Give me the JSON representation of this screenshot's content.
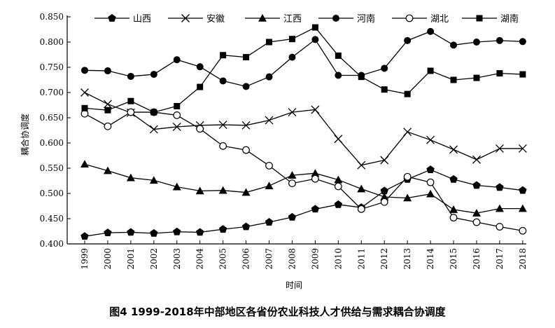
{
  "chart_data": {
    "type": "line",
    "caption": "图4 1999-2018年中部地区各省份农业科技人才供给与需求耦合协调度",
    "xlabel": "时间",
    "ylabel": "耦合协调度",
    "ylim": [
      0.4,
      0.85
    ],
    "yticks": [
      "0.400",
      "0.450",
      "0.500",
      "0.550",
      "0.600",
      "0.650",
      "0.700",
      "0.750",
      "0.800",
      "0.850"
    ],
    "x": [
      "1999",
      "2000",
      "2001",
      "2002",
      "2003",
      "2004",
      "2005",
      "2006",
      "2007",
      "2008",
      "2009",
      "2010",
      "2011",
      "2012",
      "2013",
      "2014",
      "2015",
      "2016",
      "2017",
      "2018"
    ],
    "legend_position": "top",
    "grid": false,
    "series": [
      {
        "name": "山西",
        "marker": "pentagon-filled",
        "values": [
          0.415,
          0.422,
          0.423,
          0.421,
          0.424,
          0.423,
          0.429,
          0.434,
          0.443,
          0.453,
          0.469,
          0.478,
          0.472,
          0.505,
          0.528,
          0.547,
          0.528,
          0.516,
          0.512,
          0.506
        ]
      },
      {
        "name": "安徽",
        "marker": "cross",
        "values": [
          0.7,
          0.677,
          0.66,
          0.627,
          0.632,
          0.635,
          0.636,
          0.635,
          0.645,
          0.661,
          0.666,
          0.608,
          0.556,
          0.566,
          0.622,
          0.606,
          0.587,
          0.567,
          0.589,
          0.589
        ]
      },
      {
        "name": "江西",
        "marker": "triangle-filled",
        "values": [
          0.558,
          0.545,
          0.531,
          0.526,
          0.513,
          0.505,
          0.506,
          0.502,
          0.515,
          0.536,
          0.54,
          0.527,
          0.509,
          0.493,
          0.491,
          0.499,
          0.468,
          0.461,
          0.47,
          0.47
        ]
      },
      {
        "name": "河南",
        "marker": "circle-filled",
        "values": [
          0.744,
          0.743,
          0.732,
          0.736,
          0.765,
          0.751,
          0.723,
          0.712,
          0.731,
          0.77,
          0.805,
          0.734,
          0.734,
          0.748,
          0.803,
          0.821,
          0.794,
          0.8,
          0.803,
          0.801
        ]
      },
      {
        "name": "湖北",
        "marker": "circle-open",
        "values": [
          0.658,
          0.633,
          0.661,
          0.661,
          0.655,
          0.628,
          0.594,
          0.586,
          0.555,
          0.52,
          0.529,
          0.514,
          0.469,
          0.483,
          0.533,
          0.522,
          0.452,
          0.443,
          0.434,
          0.426
        ]
      },
      {
        "name": "湖南",
        "marker": "square-filled",
        "values": [
          0.669,
          0.665,
          0.683,
          0.661,
          0.673,
          0.711,
          0.774,
          0.77,
          0.8,
          0.806,
          0.829,
          0.773,
          0.731,
          0.706,
          0.697,
          0.743,
          0.725,
          0.729,
          0.738,
          0.736
        ]
      }
    ]
  }
}
